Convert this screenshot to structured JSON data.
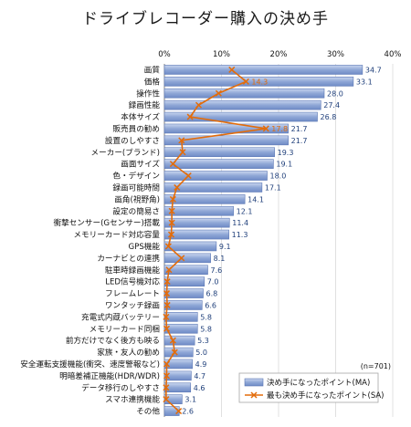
{
  "chart_data": {
    "type": "bar",
    "orientation": "horizontal",
    "title": "ドライブレコーダー購入の決め手",
    "xlim": [
      0,
      40
    ],
    "x_ticks": [
      "0%",
      "10%",
      "20%",
      "30%",
      "40%"
    ],
    "grid": true,
    "sample_note": "(n=701)",
    "legend_position": "bottom-right",
    "categories": [
      "画質",
      "価格",
      "操作性",
      "録画性能",
      "本体サイズ",
      "販売員の勧め",
      "設置のしやすさ",
      "メーカー(ブランド)",
      "画面サイズ",
      "色・デザイン",
      "録画可能時間",
      "画角(視野角)",
      "設定の簡易さ",
      "衝撃センサー(Gセンサー)搭載",
      "メモリーカード対応容量",
      "GPS機能",
      "カーナビとの連携",
      "駐車時録画機能",
      "LED信号機対応",
      "フレームレート",
      "ワンタッチ録画",
      "充電式内蔵バッテリー",
      "メモリーカード同梱",
      "前方だけでなく後方も映る",
      "家族・友人の勧め",
      "安全運転支援機能(衝突、速度警報など)",
      "明暗差補正機能(HDR/WDR)",
      "データ移行のしやすさ",
      "スマホ連携機能",
      "その他"
    ],
    "series": [
      {
        "name": "決め手になったポイント(MA)",
        "chart": "bar",
        "color": "#8fa7d6",
        "values": [
          34.7,
          33.1,
          28.0,
          27.4,
          26.8,
          21.7,
          21.7,
          19.3,
          19.1,
          18.0,
          17.1,
          14.1,
          12.1,
          11.4,
          11.3,
          9.1,
          8.1,
          7.6,
          7.0,
          6.8,
          6.6,
          5.8,
          5.8,
          5.3,
          5.0,
          4.9,
          4.7,
          4.6,
          3.1,
          2.6
        ]
      },
      {
        "name": "最も決め手になったポイント(SA)",
        "chart": "line",
        "color": "#e36c0a",
        "values": [
          11.8,
          14.3,
          9.5,
          6.0,
          4.5,
          17.8,
          3.0,
          3.2,
          1.5,
          4.2,
          2.2,
          1.5,
          1.3,
          1.3,
          1.2,
          0.7,
          3.0,
          0.8,
          0.5,
          0.4,
          0.5,
          0.3,
          0.4,
          1.5,
          1.8,
          0.4,
          0.4,
          0.3,
          0.3,
          2.5
        ],
        "labeled": [
          {
            "category": "価格",
            "label": "14.3"
          },
          {
            "category": "販売員の勧め",
            "label": "17.8"
          }
        ]
      }
    ]
  }
}
